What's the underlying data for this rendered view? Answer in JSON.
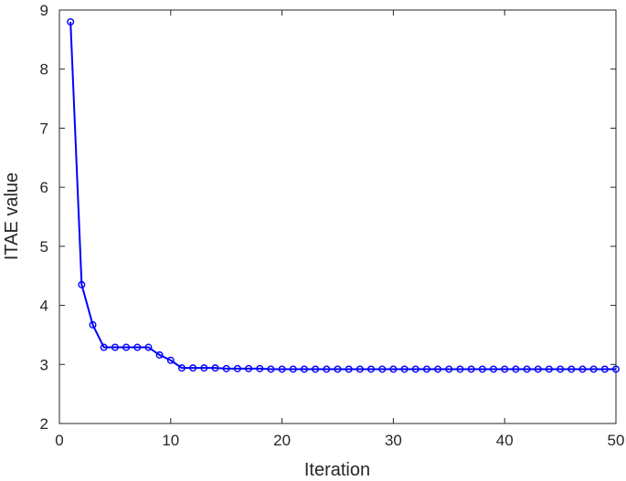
{
  "chart_data": {
    "type": "line",
    "title": "",
    "xlabel": "Iteration",
    "ylabel": "ITAE value",
    "xlim": [
      0,
      50
    ],
    "ylim": [
      2,
      9
    ],
    "xticks": [
      0,
      10,
      20,
      30,
      40,
      50
    ],
    "yticks": [
      2,
      3,
      4,
      5,
      6,
      7,
      8,
      9
    ],
    "grid": false,
    "legend": "none",
    "series": [
      {
        "color": "#0000ff",
        "marker": "circle",
        "x": [
          1,
          2,
          3,
          4,
          5,
          6,
          7,
          8,
          9,
          10,
          11,
          12,
          13,
          14,
          15,
          16,
          17,
          18,
          19,
          20,
          21,
          22,
          23,
          24,
          25,
          26,
          27,
          28,
          29,
          30,
          31,
          32,
          33,
          34,
          35,
          36,
          37,
          38,
          39,
          40,
          41,
          42,
          43,
          44,
          45,
          46,
          47,
          48,
          49,
          50
        ],
        "y": [
          8.8,
          4.35,
          3.67,
          3.29,
          3.29,
          3.29,
          3.29,
          3.29,
          3.16,
          3.07,
          2.94,
          2.94,
          2.94,
          2.94,
          2.93,
          2.93,
          2.93,
          2.93,
          2.92,
          2.92,
          2.92,
          2.92,
          2.92,
          2.92,
          2.92,
          2.92,
          2.92,
          2.92,
          2.92,
          2.92,
          2.92,
          2.92,
          2.92,
          2.92,
          2.92,
          2.92,
          2.92,
          2.92,
          2.92,
          2.92,
          2.92,
          2.92,
          2.92,
          2.92,
          2.92,
          2.92,
          2.92,
          2.92,
          2.92,
          2.92
        ]
      }
    ]
  }
}
